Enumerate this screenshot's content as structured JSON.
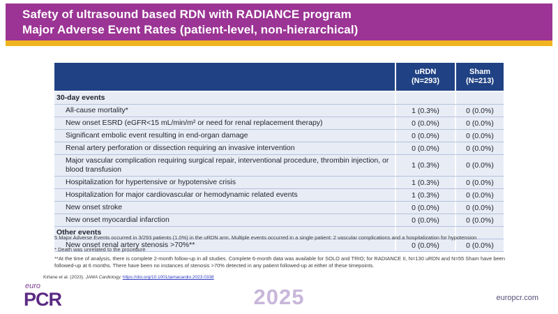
{
  "slide": {
    "title_line1": "Safety of ultrasound based RDN with RADIANCE program",
    "title_line2": "Major Adverse Event Rates (patient-level, non-hierarchical)"
  },
  "colors": {
    "header_purple": "#9b3494",
    "accent_gold": "#f0b41e",
    "table_header_navy": "#204284",
    "table_row_bg": "#e8ecf5",
    "brand_purple": "#5b2a84",
    "link_blue": "#2f3bbf"
  },
  "table": {
    "header": {
      "urdn": {
        "name": "uRDN",
        "n": "(N=293)"
      },
      "sham": {
        "name": "Sham",
        "n": "(N=213)"
      }
    },
    "rows": [
      {
        "type": "section",
        "label": "30-day events"
      },
      {
        "type": "event",
        "label": "All-cause mortality*",
        "urdn": "1 (0.3%)",
        "sham": "0 (0.0%)"
      },
      {
        "type": "event",
        "label": "New onset ESRD (eGFR<15 mL/min/m² or need for renal replacement therapy)",
        "urdn": "0 (0.0%)",
        "sham": "0 (0.0%)"
      },
      {
        "type": "event",
        "label": "Significant embolic event resulting in end-organ damage",
        "urdn": "0 (0.0%)",
        "sham": "0 (0.0%)"
      },
      {
        "type": "event",
        "label": "Renal artery perforation or dissection requiring an invasive intervention",
        "urdn": "0 (0.0%)",
        "sham": "0 (0.0%)"
      },
      {
        "type": "event",
        "label": "Major vascular complication requiring surgical repair, interventional procedure, thrombin injection, or blood transfusion",
        "urdn": "1 (0.3%)",
        "sham": "0 (0.0%)"
      },
      {
        "type": "event",
        "label": "Hospitalization for hypertensive or hypotensive crisis",
        "urdn": "1 (0.3%)",
        "sham": "0 (0.0%)"
      },
      {
        "type": "event",
        "label": "Hospitalization for major cardiovascular or hemodynamic related events",
        "urdn": "1 (0.3%)",
        "sham": "0 (0.0%)"
      },
      {
        "type": "event",
        "label": "New onset stroke",
        "urdn": "0 (0.0%)",
        "sham": "0 (0.0%)"
      },
      {
        "type": "event",
        "label": "New onset myocardial infarction",
        "urdn": "0 (0.0%)",
        "sham": "0 (0.0%)"
      },
      {
        "type": "section",
        "label": "Other events"
      },
      {
        "type": "event",
        "label": "New onset renal artery stenosis >70%**",
        "urdn": "0 (0.0%)",
        "sham": "0 (0.0%)"
      }
    ]
  },
  "footnotes": {
    "summary": "5 Major Adverse Events occurred in 3/293 patients (1.0%) in the uRDN arm. Multiple events occurred in a single patient: 2 vascular complications and a hospitalization for hypotension",
    "death_note": "* Death was unrelated to the procedure",
    "stenosis_note": "**At the time of analysis, there is complete 2-month follow-up in all studies.  Complete 6-month data was available for SOLO and TRIO; for RADIANCE II, N=130 uRDN and N=55 Sham have been followed-up at 6 months.  There have been no instances of stenosis >70% detected in any patient followed-up at either of these timepoints.",
    "citation_authors": "Kirtane et al. (2023).",
    "citation_journal": "JAMA Cardiology.",
    "citation_link": "https://doi.org/10.1001/jamacardio.2023.0338"
  },
  "footer": {
    "logo_euro": "euro",
    "logo_pcr": "PCR",
    "year": "2025",
    "website": "europcr.com"
  }
}
